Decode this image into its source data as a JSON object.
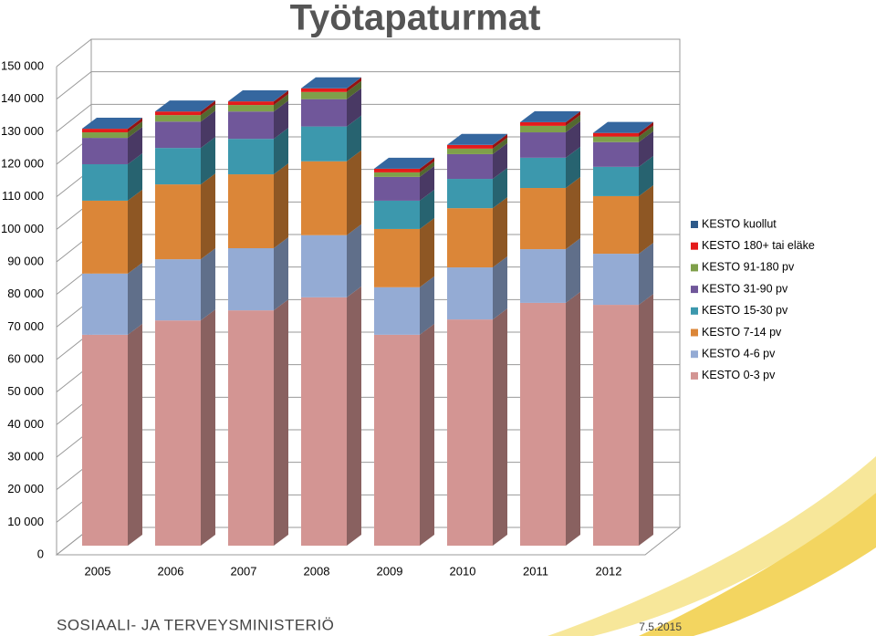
{
  "chart_data": {
    "type": "bar3d_stacked",
    "title": "Työtapaturmat",
    "categories": [
      "2005",
      "2006",
      "2007",
      "2008",
      "2009",
      "2010",
      "2011",
      "2012"
    ],
    "series": [
      {
        "name": "KESTO 0-3 pv",
        "color": "#d39593",
        "values": [
          64800,
          69200,
          72300,
          76300,
          64800,
          69500,
          74600,
          74000
        ]
      },
      {
        "name": "KESTO 4-6 pv",
        "color": "#94abd4",
        "values": [
          18800,
          18800,
          19100,
          19100,
          14600,
          16000,
          16500,
          15700
        ]
      },
      {
        "name": "KESTO 7-14 pv",
        "color": "#db8638",
        "values": [
          22400,
          23000,
          22700,
          22700,
          17900,
          18200,
          18800,
          17700
        ]
      },
      {
        "name": "KESTO 15-30 pv",
        "color": "#3c98ad",
        "values": [
          11200,
          11200,
          10900,
          10700,
          8700,
          9000,
          9300,
          9000
        ]
      },
      {
        "name": "KESTO 31-90 pv",
        "color": "#70579a",
        "values": [
          8100,
          8100,
          8400,
          8400,
          7300,
          7600,
          7800,
          7600
        ]
      },
      {
        "name": "KESTO 91-180 pv",
        "color": "#7fa04a",
        "values": [
          1700,
          2000,
          2000,
          2200,
          1400,
          1700,
          2000,
          1700
        ]
      },
      {
        "name": "KESTO 180+ tai eläke",
        "color": "#e41b1b",
        "values": [
          1100,
          1100,
          1100,
          1100,
          1100,
          1100,
          1100,
          1100
        ]
      },
      {
        "name": "KESTO kuollut",
        "color": "#2e5a8a",
        "values": [
          40,
          40,
          40,
          40,
          40,
          40,
          40,
          40
        ]
      }
    ],
    "ylim": [
      0,
      150000
    ],
    "yticks": [
      0,
      {
        "value": 10000,
        "label": "10 000"
      },
      {
        "value": 20000,
        "label": "20 000"
      },
      {
        "value": 30000,
        "label": "30 000"
      },
      {
        "value": 40000,
        "label": "40 000"
      },
      {
        "value": 50000,
        "label": "50 000"
      },
      {
        "value": 60000,
        "label": "60 000"
      },
      {
        "value": 70000,
        "label": "70 000"
      },
      {
        "value": 80000,
        "label": "80 000"
      },
      {
        "value": 90000,
        "label": "90 000"
      },
      {
        "value": 100000,
        "label": "100 000"
      },
      {
        "value": 110000,
        "label": "110 000"
      },
      {
        "value": 120000,
        "label": "120 000"
      },
      {
        "value": 130000,
        "label": "130 000"
      },
      {
        "value": 140000,
        "label": "140 000"
      },
      {
        "value": 150000,
        "label": "150 000"
      }
    ],
    "grid": true,
    "legend": "right"
  },
  "footer": {
    "organization": "SOSIAALI- JA TERVEYSMINISTERIÖ",
    "date": "7.5.2015"
  }
}
